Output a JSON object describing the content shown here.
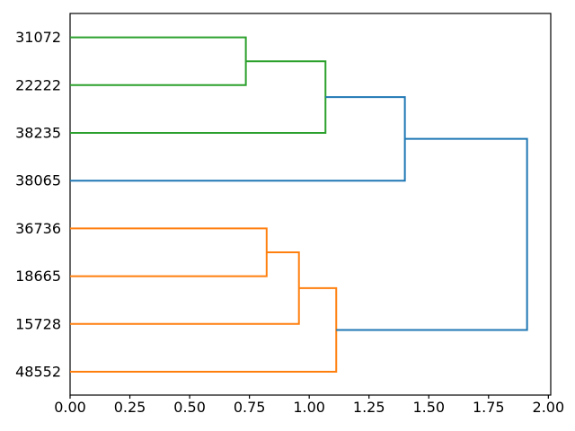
{
  "chart_data": {
    "type": "dendrogram",
    "orientation": "right",
    "title": "",
    "xlabel": "",
    "ylabel": "",
    "grid": false,
    "leaves": [
      "31072",
      "22222",
      "38235",
      "38065",
      "36736",
      "18665",
      "15728",
      "48552"
    ],
    "links": [
      {
        "a": "31072",
        "b": "22222",
        "height": 0.735,
        "color": "green"
      },
      {
        "a": "@0",
        "b": "38235",
        "height": 1.068,
        "color": "green"
      },
      {
        "a": "@1",
        "b": "38065",
        "height": 1.4,
        "color": "blue"
      },
      {
        "a": "36736",
        "b": "18665",
        "height": 0.822,
        "color": "orange"
      },
      {
        "a": "@3",
        "b": "15728",
        "height": 0.957,
        "color": "orange"
      },
      {
        "a": "@4",
        "b": "48552",
        "height": 1.113,
        "color": "orange"
      },
      {
        "a": "@2",
        "b": "@5",
        "height": 1.911,
        "color": "blue"
      }
    ],
    "colors": {
      "blue": "#1f77b4",
      "orange": "#ff7f0e",
      "green": "#2ca02c"
    },
    "x_axis": {
      "tick_values": [
        0.0,
        0.25,
        0.5,
        0.75,
        1.0,
        1.25,
        1.5,
        1.75,
        2.0
      ],
      "tick_labels": [
        "0.00",
        "0.25",
        "0.50",
        "0.75",
        "1.00",
        "1.25",
        "1.50",
        "1.75",
        "2.00"
      ],
      "xlim": [
        0.0,
        2.01
      ]
    },
    "axis_color": "#000000"
  }
}
